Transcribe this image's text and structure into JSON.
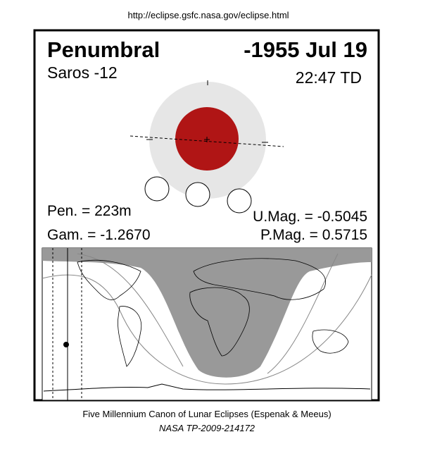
{
  "url": "http://eclipse.gsfc.nasa.gov/eclipse.html",
  "header": {
    "type": "Penumbral",
    "date": "-1955 Jul 19",
    "saros": "Saros -12",
    "time": "22:47 TD"
  },
  "stats": {
    "pen": "Pen. = 223m",
    "gam": "Gam. = -1.2670",
    "umag": "U.Mag. = -0.5045",
    "pmag": "P.Mag. = 0.5715"
  },
  "footer": {
    "line1": "Five Millennium Canon of Lunar Eclipses (Espenak & Meeus)",
    "line2": "NASA TP-2009-214172"
  }
}
